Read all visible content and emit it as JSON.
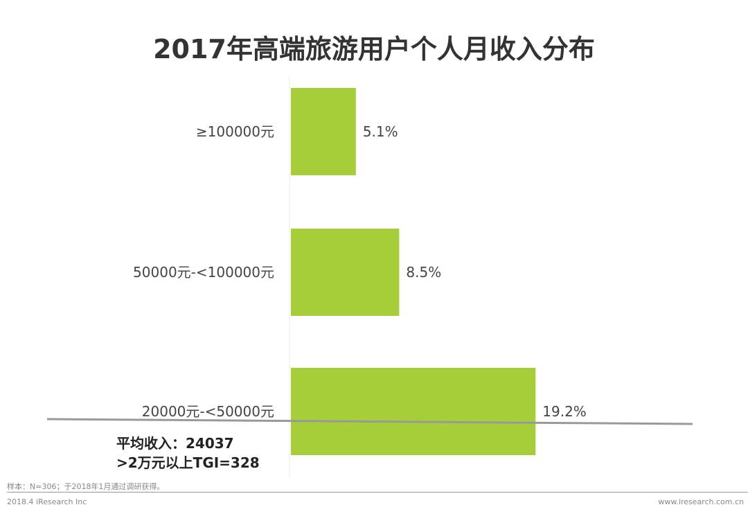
{
  "chart_data": {
    "type": "bar",
    "orientation": "horizontal",
    "title": "2017年高端旅游用户个人月收入分布",
    "categories": [
      "≥100000元",
      "50000元-<100000元",
      "20000元-<50000元"
    ],
    "values": [
      5.1,
      8.5,
      19.2
    ],
    "value_labels": [
      "5.1%",
      "8.5%",
      "19.2%"
    ],
    "unit": "%",
    "bar_color": "#a6ce39",
    "grid": false,
    "xlim": [
      0,
      25
    ]
  },
  "annotations": {
    "avg_income": "平均收入：24037",
    "tgi": ">2万元以上TGI=328"
  },
  "footer": {
    "sample": "样本：N=306；于2018年1月通过调研获得。",
    "copyright": "2018.4 iResearch Inc",
    "website": "www.iresearch.com.cn"
  }
}
